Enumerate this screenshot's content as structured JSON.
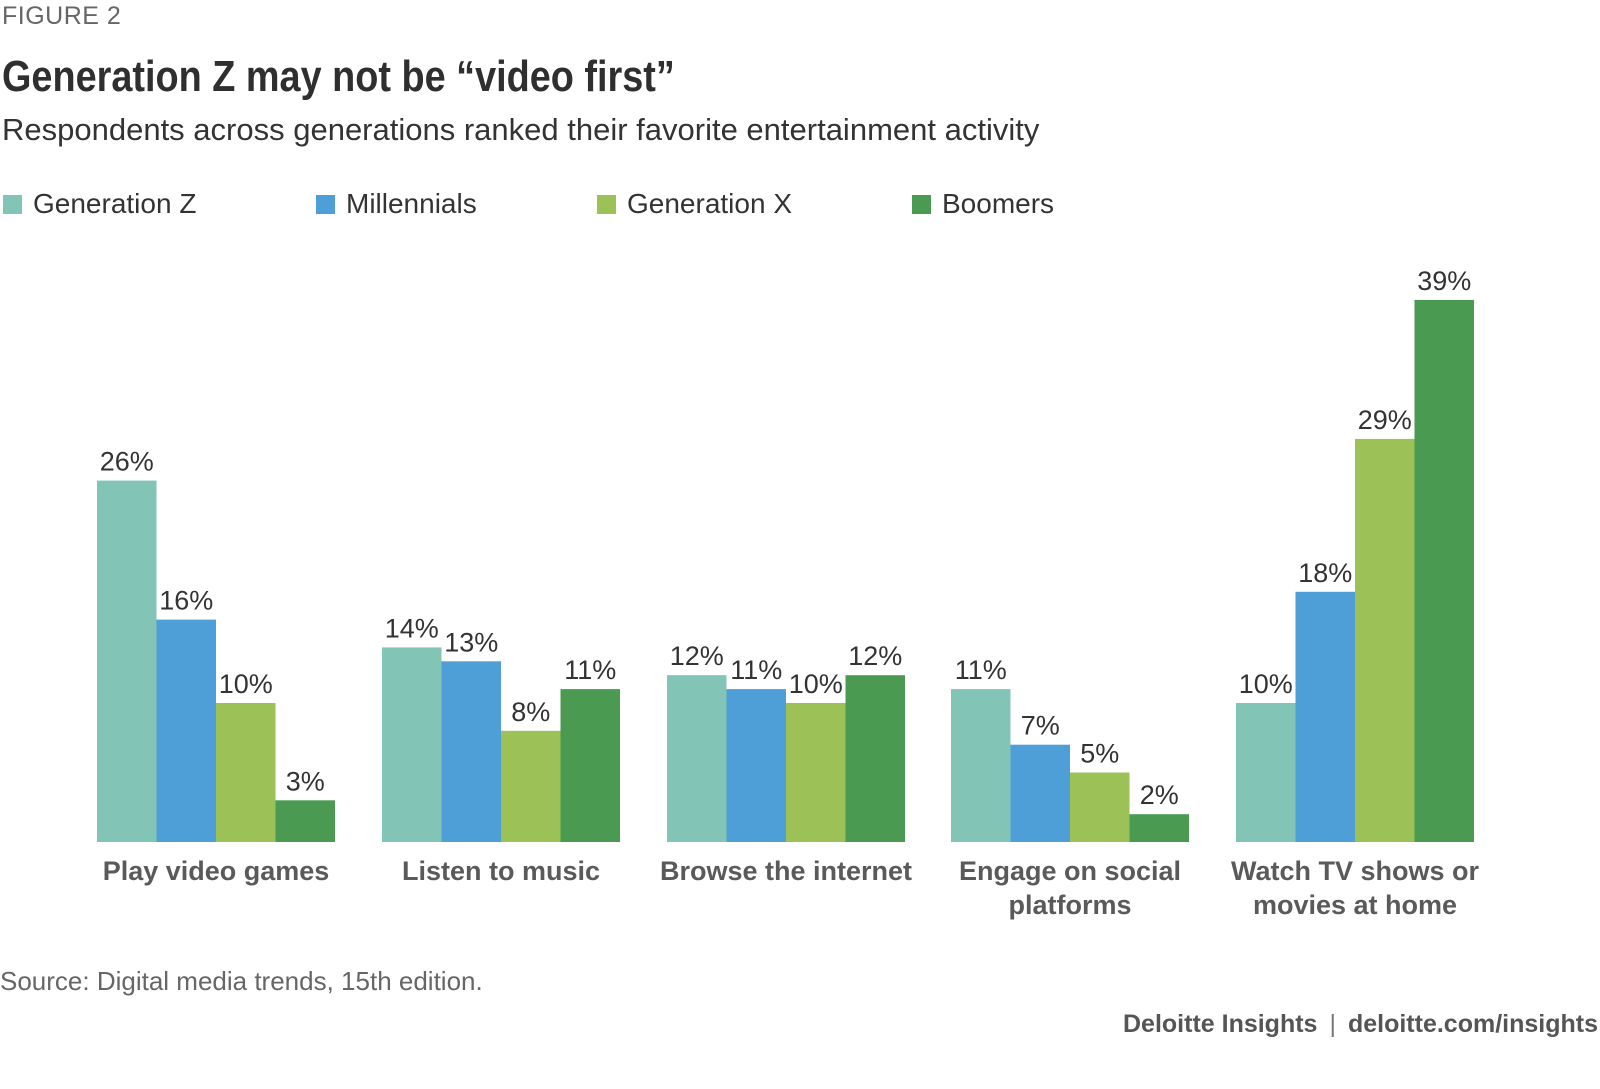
{
  "figure_label": "FIGURE 2",
  "title": "Generation Z may not be “video first”",
  "subtitle": "Respondents across generations ranked their favorite entertainment activity",
  "source": "Source: Digital media trends, 15th edition.",
  "footer": {
    "brand": "Deloitte Insights",
    "separator": "|",
    "url": "deloitte.com/insights"
  },
  "chart_data": {
    "type": "bar",
    "title": "Generation Z may not be “video first”",
    "categories": [
      [
        "Play video games"
      ],
      [
        "Listen to music"
      ],
      [
        "Browse the internet"
      ],
      [
        "Engage on social",
        "platforms"
      ],
      [
        "Watch TV shows or",
        "movies at home"
      ]
    ],
    "series": [
      {
        "name": "Generation Z",
        "color": "#82c4b5",
        "values": [
          26,
          14,
          12,
          11,
          10
        ]
      },
      {
        "name": "Millennials",
        "color": "#4e9fd8",
        "values": [
          16,
          13,
          11,
          7,
          18
        ]
      },
      {
        "name": "Generation X",
        "color": "#9bc157",
        "values": [
          10,
          8,
          10,
          5,
          29
        ]
      },
      {
        "name": "Boomers",
        "color": "#4a9a52",
        "values": [
          3,
          11,
          12,
          2,
          39
        ]
      }
    ],
    "value_suffix": "%",
    "ylim": [
      0,
      39
    ],
    "grid": false,
    "legend_position": "top-left"
  }
}
